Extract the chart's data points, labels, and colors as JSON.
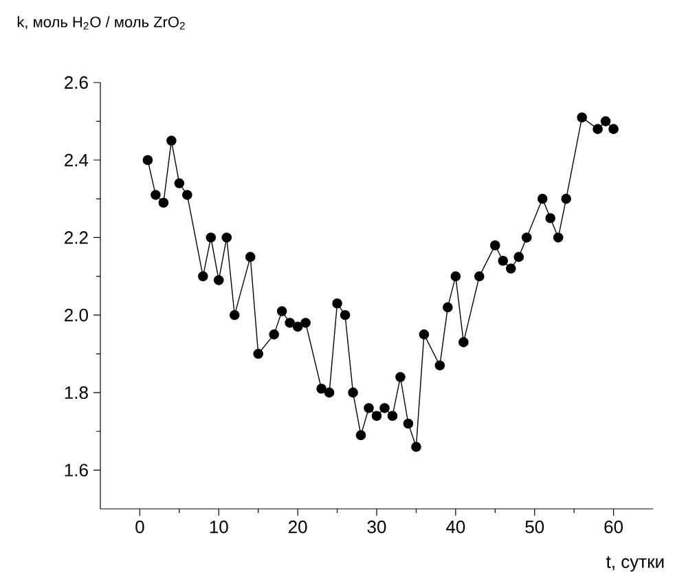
{
  "chart_data": {
    "type": "line",
    "xlabel": "t, сутки",
    "ylabel": "k, моль H$_{2}$O / моль ZrO$_{2}$",
    "x": [
      1,
      2,
      3,
      4,
      5,
      6,
      8,
      9,
      10,
      11,
      12,
      14,
      15,
      17,
      18,
      19,
      20,
      21,
      23,
      24,
      25,
      26,
      27,
      28,
      29,
      30,
      31,
      32,
      33,
      34,
      35,
      36,
      38,
      39,
      40,
      41,
      43,
      45,
      46,
      47,
      48,
      49,
      51,
      52,
      53,
      54,
      56,
      58,
      59,
      60
    ],
    "values": [
      2.4,
      2.31,
      2.29,
      2.45,
      2.34,
      2.31,
      2.1,
      2.2,
      2.09,
      2.2,
      2.0,
      2.15,
      1.9,
      1.95,
      2.01,
      1.98,
      1.97,
      1.98,
      1.81,
      1.8,
      2.03,
      2.0,
      1.8,
      1.69,
      1.76,
      1.74,
      1.76,
      1.74,
      1.84,
      1.72,
      1.66,
      1.95,
      1.87,
      2.02,
      2.1,
      1.93,
      2.1,
      2.18,
      2.14,
      2.12,
      2.15,
      2.2,
      2.3,
      2.25,
      2.2,
      2.3,
      2.51,
      2.48,
      2.5,
      2.48
    ],
    "color": "#000000",
    "marker": "circle",
    "line_style": "solid",
    "grid": false,
    "xlim": [
      -5,
      65
    ],
    "ylim": [
      1.5,
      2.6
    ],
    "xticks": [
      0,
      10,
      20,
      30,
      40,
      50,
      60
    ],
    "yticks": [
      1.6,
      1.8,
      {
        "value": 2.0,
        "label": "2.0"
      },
      2.2,
      2.4,
      2.6
    ]
  }
}
